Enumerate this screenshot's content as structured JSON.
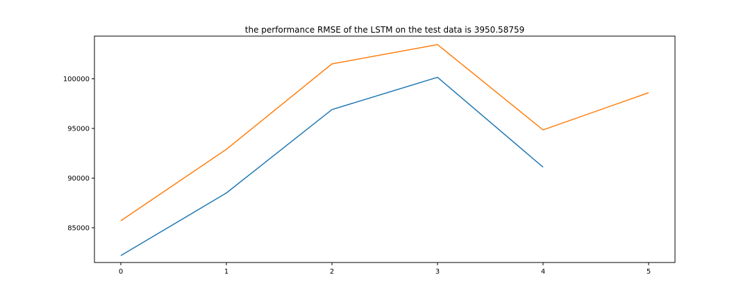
{
  "chart_data": {
    "type": "line",
    "title": "the performance RMSE of the LSTM  on the test data is 3950.58759",
    "xlabel": "",
    "ylabel": "",
    "xlim": [
      -0.25,
      5.25
    ],
    "ylim": [
      81500,
      104300
    ],
    "xticks": [
      0,
      1,
      2,
      3,
      4,
      5
    ],
    "yticks": [
      85000,
      90000,
      95000,
      100000
    ],
    "grid": false,
    "series": [
      {
        "color": "#1f77b4",
        "x": [
          0,
          1,
          2,
          3,
          4
        ],
        "y": [
          82200,
          88500,
          96900,
          100150,
          91100
        ]
      },
      {
        "color": "#ff7f0e",
        "x": [
          0,
          1,
          2,
          3,
          4,
          5
        ],
        "y": [
          85700,
          92900,
          101500,
          103450,
          94850,
          98600
        ]
      }
    ]
  }
}
